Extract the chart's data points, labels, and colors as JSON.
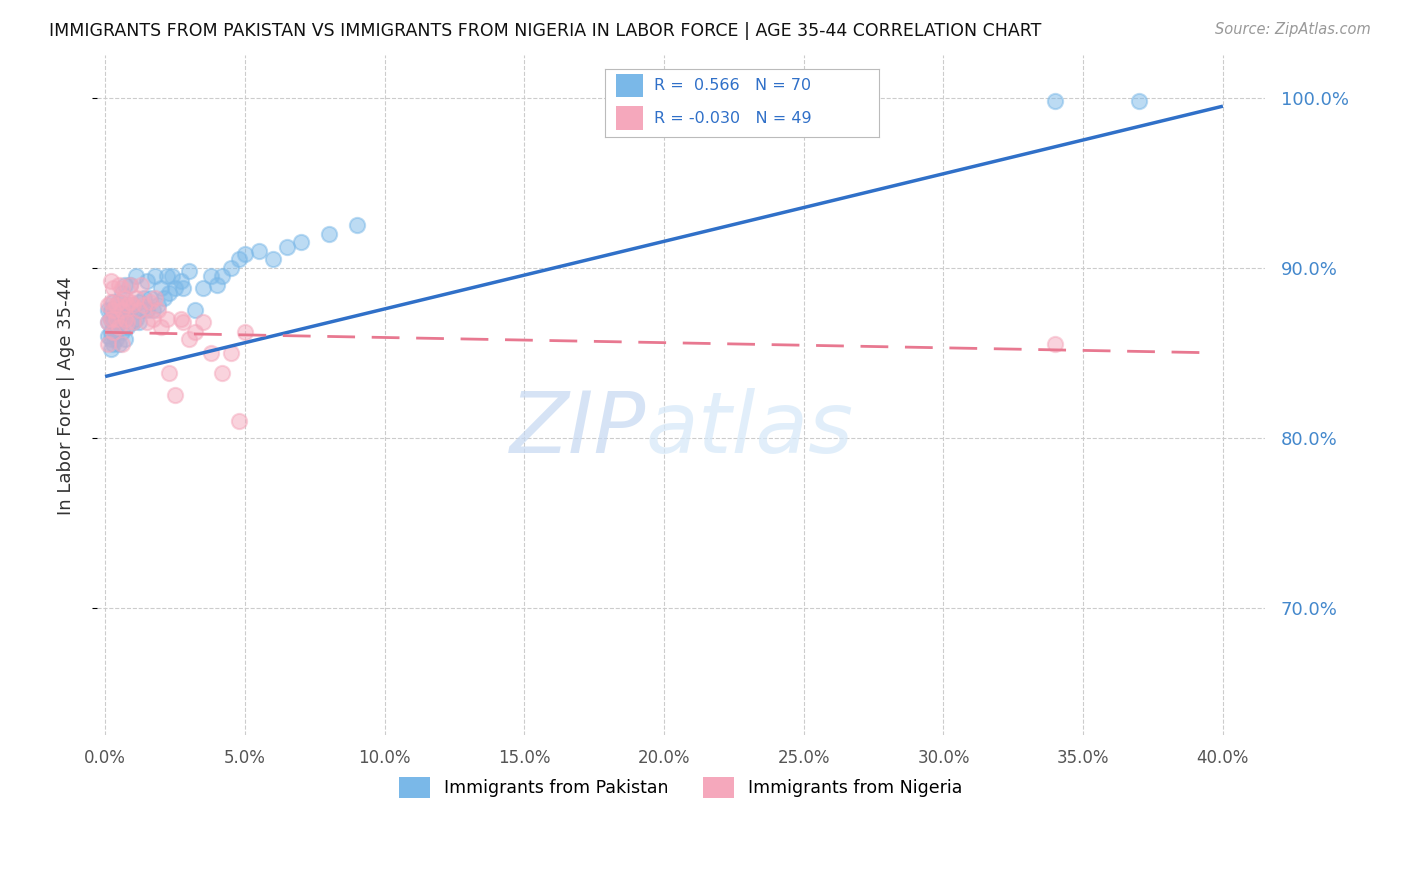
{
  "title": "IMMIGRANTS FROM PAKISTAN VS IMMIGRANTS FROM NIGERIA IN LABOR FORCE | AGE 35-44 CORRELATION CHART",
  "source": "Source: ZipAtlas.com",
  "ylabel": "In Labor Force | Age 35-44",
  "xlim": [
    -0.003,
    0.415
  ],
  "ylim": [
    0.625,
    1.025
  ],
  "pakistan_R": 0.566,
  "pakistan_N": 70,
  "nigeria_R": -0.03,
  "nigeria_N": 49,
  "pakistan_color": "#7ab8e8",
  "nigeria_color": "#f5a8bc",
  "pakistan_line_color": "#3070c8",
  "nigeria_line_color": "#e87890",
  "pakistan_trend_x0": 0.0,
  "pakistan_trend_x1": 0.4,
  "pakistan_trend_y0": 0.836,
  "pakistan_trend_y1": 0.995,
  "nigeria_trend_x0": 0.0,
  "nigeria_trend_x1": 0.395,
  "nigeria_trend_y0": 0.862,
  "nigeria_trend_y1": 0.85,
  "pakistan_x": [
    0.001,
    0.001,
    0.001,
    0.002,
    0.002,
    0.002,
    0.002,
    0.002,
    0.003,
    0.003,
    0.003,
    0.003,
    0.003,
    0.004,
    0.004,
    0.004,
    0.004,
    0.005,
    0.005,
    0.005,
    0.005,
    0.006,
    0.006,
    0.006,
    0.007,
    0.007,
    0.007,
    0.008,
    0.008,
    0.009,
    0.009,
    0.01,
    0.01,
    0.011,
    0.011,
    0.012,
    0.012,
    0.013,
    0.014,
    0.015,
    0.015,
    0.016,
    0.017,
    0.018,
    0.019,
    0.02,
    0.021,
    0.022,
    0.023,
    0.024,
    0.025,
    0.027,
    0.028,
    0.03,
    0.032,
    0.035,
    0.038,
    0.04,
    0.042,
    0.045,
    0.048,
    0.05,
    0.055,
    0.06,
    0.065,
    0.07,
    0.08,
    0.09,
    0.34,
    0.37
  ],
  "pakistan_y": [
    0.868,
    0.875,
    0.86,
    0.87,
    0.858,
    0.875,
    0.862,
    0.852,
    0.868,
    0.875,
    0.855,
    0.88,
    0.862,
    0.875,
    0.858,
    0.87,
    0.865,
    0.868,
    0.88,
    0.855,
    0.875,
    0.87,
    0.885,
    0.862,
    0.875,
    0.858,
    0.89,
    0.865,
    0.878,
    0.875,
    0.89,
    0.868,
    0.878,
    0.87,
    0.895,
    0.868,
    0.88,
    0.875,
    0.882,
    0.892,
    0.875,
    0.882,
    0.875,
    0.895,
    0.878,
    0.888,
    0.882,
    0.895,
    0.885,
    0.895,
    0.888,
    0.892,
    0.888,
    0.898,
    0.875,
    0.888,
    0.895,
    0.89,
    0.895,
    0.9,
    0.905,
    0.908,
    0.91,
    0.905,
    0.912,
    0.915,
    0.92,
    0.925,
    0.998,
    0.998
  ],
  "nigeria_x": [
    0.001,
    0.001,
    0.001,
    0.002,
    0.002,
    0.002,
    0.003,
    0.003,
    0.003,
    0.004,
    0.004,
    0.005,
    0.005,
    0.005,
    0.006,
    0.006,
    0.006,
    0.007,
    0.007,
    0.008,
    0.008,
    0.009,
    0.009,
    0.01,
    0.01,
    0.011,
    0.012,
    0.013,
    0.014,
    0.015,
    0.016,
    0.017,
    0.018,
    0.019,
    0.02,
    0.022,
    0.023,
    0.025,
    0.027,
    0.028,
    0.03,
    0.032,
    0.035,
    0.038,
    0.042,
    0.045,
    0.048,
    0.05,
    0.34
  ],
  "nigeria_y": [
    0.878,
    0.868,
    0.855,
    0.88,
    0.892,
    0.87,
    0.888,
    0.875,
    0.862,
    0.878,
    0.87,
    0.89,
    0.88,
    0.865,
    0.888,
    0.875,
    0.855,
    0.882,
    0.87,
    0.878,
    0.868,
    0.89,
    0.88,
    0.878,
    0.868,
    0.882,
    0.875,
    0.89,
    0.878,
    0.868,
    0.88,
    0.87,
    0.882,
    0.875,
    0.865,
    0.87,
    0.838,
    0.825,
    0.87,
    0.868,
    0.858,
    0.862,
    0.868,
    0.85,
    0.838,
    0.85,
    0.81,
    0.862,
    0.855
  ]
}
